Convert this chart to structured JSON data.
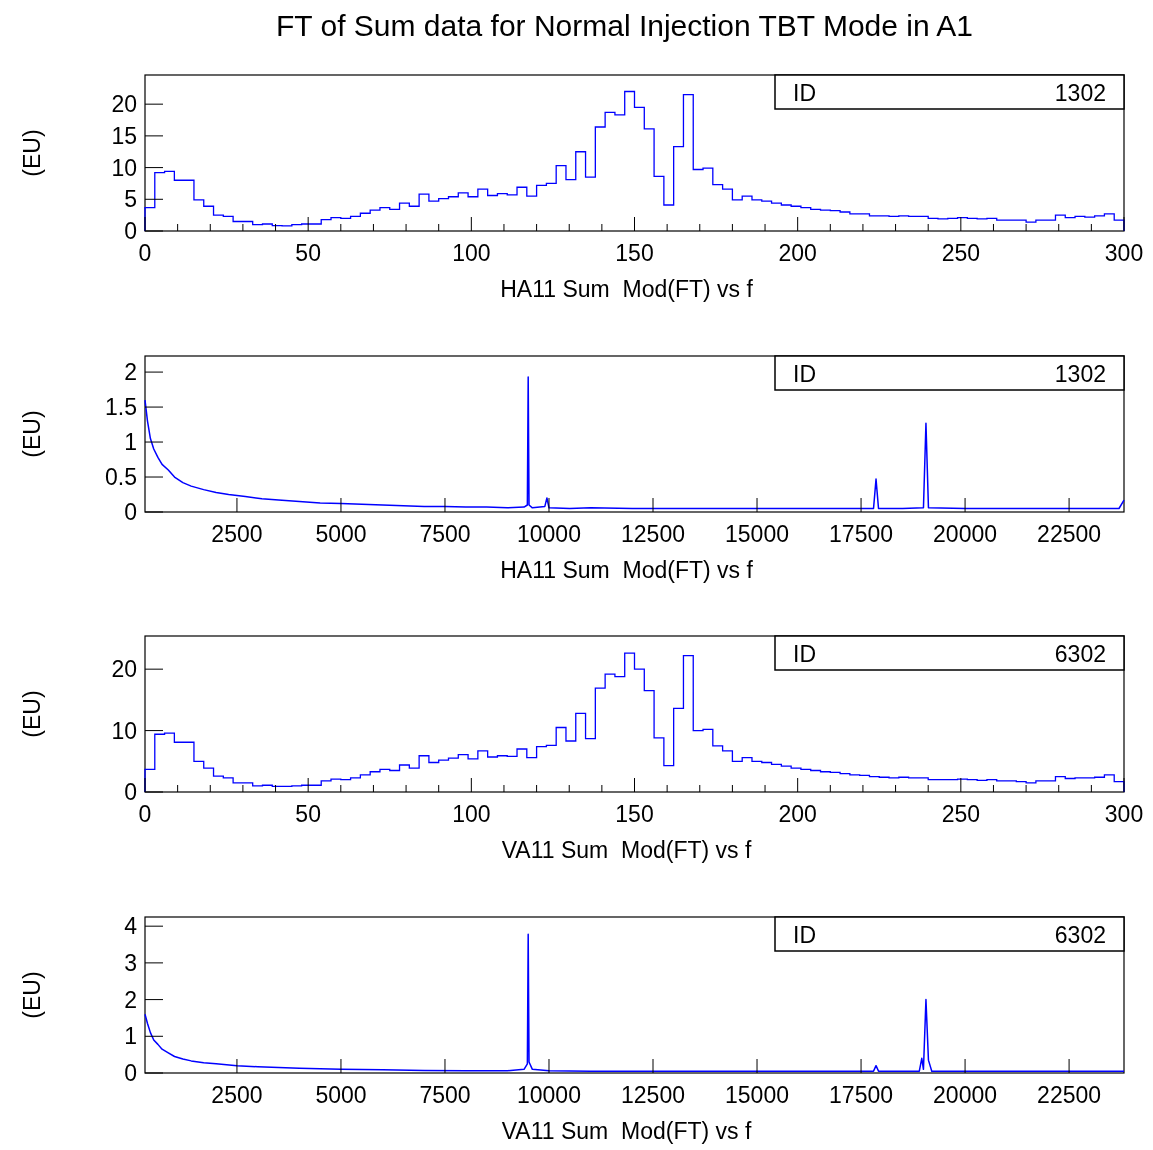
{
  "chart_data": [
    {
      "type": "histogram",
      "title": "FT of Sum data for Normal Injection TBT Mode in A1",
      "xlabel": "HA11 Sum  Mod(FT) vs f",
      "ylabel": "(EU)",
      "annotations": [
        "ID",
        "1302"
      ],
      "color": "#0000ff",
      "bins": [
        0,
        3,
        6,
        9,
        12,
        15,
        18,
        21,
        24,
        27,
        30,
        33,
        36,
        39,
        42,
        45,
        48,
        51,
        54,
        57,
        60,
        63,
        66,
        69,
        72,
        75,
        78,
        81,
        84,
        87,
        90,
        93,
        96,
        99,
        102,
        105,
        108,
        111,
        114,
        117,
        120,
        123,
        126,
        129,
        132,
        135,
        138,
        141,
        144,
        147,
        150,
        153,
        156,
        159,
        162,
        165,
        168,
        171,
        174,
        177,
        180,
        183,
        186,
        189,
        192,
        195,
        198,
        201,
        204,
        207,
        210,
        213,
        216,
        219,
        222,
        225,
        228,
        231,
        234,
        237,
        240,
        243,
        246,
        249,
        252,
        255,
        258,
        261,
        264,
        267,
        270,
        273,
        276,
        279,
        282,
        285,
        288,
        291,
        294,
        297,
        300
      ],
      "values": [
        3.7,
        9.2,
        9.4,
        8.0,
        8.0,
        4.9,
        3.9,
        2.5,
        2.3,
        1.5,
        1.5,
        1.0,
        1.1,
        0.85,
        0.8,
        1.0,
        1.1,
        1.1,
        1.8,
        2.1,
        2.0,
        2.3,
        2.8,
        3.3,
        3.7,
        3.4,
        4.4,
        3.9,
        5.8,
        4.7,
        5.1,
        5.4,
        6.0,
        5.4,
        6.6,
        5.6,
        5.9,
        5.7,
        6.9,
        5.5,
        7.2,
        7.5,
        10.3,
        8.1,
        12.5,
        8.5,
        16.4,
        18.7,
        18.3,
        22.0,
        19.5,
        16.1,
        8.6,
        4.1,
        13.3,
        21.5,
        9.7,
        9.9,
        7.3,
        6.6,
        4.9,
        5.5,
        4.9,
        4.7,
        4.4,
        4.1,
        3.9,
        3.7,
        3.4,
        3.3,
        3.2,
        3.0,
        2.7,
        2.7,
        2.4,
        2.4,
        2.3,
        2.4,
        2.3,
        2.3,
        2.0,
        1.9,
        2.0,
        2.1,
        2.0,
        1.9,
        2.0,
        1.7,
        1.7,
        1.7,
        1.4,
        1.7,
        1.7,
        2.5,
        2.1,
        2.3,
        2.2,
        2.4,
        2.7,
        1.7
      ],
      "xlim": [
        0,
        300
      ],
      "xticks": [
        0,
        {
          "value": 10,
          "label": null
        },
        {
          "value": 20,
          "label": null
        },
        {
          "value": 30,
          "label": null
        },
        {
          "value": 40,
          "label": null
        },
        50,
        {
          "value": 60,
          "label": null
        },
        {
          "value": 70,
          "label": null
        },
        {
          "value": 80,
          "label": null
        },
        {
          "value": 90,
          "label": null
        },
        100,
        {
          "value": 110,
          "label": null
        },
        {
          "value": 120,
          "label": null
        },
        {
          "value": 130,
          "label": null
        },
        {
          "value": 140,
          "label": null
        },
        150,
        {
          "value": 160,
          "label": null
        },
        {
          "value": 170,
          "label": null
        },
        {
          "value": 180,
          "label": null
        },
        {
          "value": 190,
          "label": null
        },
        200,
        {
          "value": 210,
          "label": null
        },
        {
          "value": 220,
          "label": null
        },
        {
          "value": 230,
          "label": null
        },
        {
          "value": 240,
          "label": null
        },
        250,
        {
          "value": 260,
          "label": null
        },
        {
          "value": 270,
          "label": null
        },
        {
          "value": 280,
          "label": null
        },
        {
          "value": 290,
          "label": null
        },
        300
      ],
      "ylim": [
        0,
        24.6
      ],
      "yticks": [
        0,
        5,
        10,
        15,
        20
      ]
    },
    {
      "type": "line",
      "xlabel": "HA11 Sum  Mod(FT) vs f",
      "ylabel": "(EU)",
      "annotations": [
        "ID",
        "1302"
      ],
      "color": "#0000ff",
      "marker": "none",
      "x": [
        290,
        350,
        420,
        500,
        600,
        700,
        850,
        1000,
        1200,
        1400,
        1700,
        2000,
        2300,
        2700,
        3100,
        3500,
        4000,
        4500,
        5000,
        5500,
        6000,
        6500,
        7000,
        7500,
        8000,
        8500,
        9000,
        9400,
        9480,
        9500,
        9520,
        9600,
        9900,
        9950,
        10000,
        10500,
        11000,
        12000,
        13000,
        14000,
        15000,
        16000,
        17000,
        17800,
        17860,
        17920,
        18500,
        19000,
        19060,
        19120,
        20000,
        21000,
        22000,
        23000,
        23700,
        23820
      ],
      "values": [
        1.6,
        1.3,
        1.05,
        0.9,
        0.78,
        0.68,
        0.6,
        0.5,
        0.42,
        0.37,
        0.32,
        0.28,
        0.25,
        0.22,
        0.19,
        0.17,
        0.15,
        0.13,
        0.12,
        0.11,
        0.1,
        0.09,
        0.08,
        0.08,
        0.07,
        0.07,
        0.06,
        0.07,
        0.1,
        1.93,
        0.1,
        0.06,
        0.08,
        0.2,
        0.06,
        0.05,
        0.06,
        0.05,
        0.05,
        0.05,
        0.05,
        0.05,
        0.05,
        0.05,
        0.47,
        0.05,
        0.05,
        0.06,
        1.27,
        0.06,
        0.05,
        0.05,
        0.05,
        0.05,
        0.05,
        0.17
      ],
      "xlim": [
        290,
        23820
      ],
      "xticks": [
        2500,
        5000,
        7500,
        10000,
        12500,
        15000,
        17500,
        20000,
        22500
      ],
      "ylim": [
        0,
        2.23
      ],
      "yticks": [
        0,
        0.5,
        1,
        1.5,
        2
      ]
    },
    {
      "type": "histogram",
      "xlabel": "VA11 Sum  Mod(FT) vs f",
      "ylabel": "(EU)",
      "annotations": [
        "ID",
        "6302"
      ],
      "color": "#0000ff",
      "bins": [
        0,
        3,
        6,
        9,
        12,
        15,
        18,
        21,
        24,
        27,
        30,
        33,
        36,
        39,
        42,
        45,
        48,
        51,
        54,
        57,
        60,
        63,
        66,
        69,
        72,
        75,
        78,
        81,
        84,
        87,
        90,
        93,
        96,
        99,
        102,
        105,
        108,
        111,
        114,
        117,
        120,
        123,
        126,
        129,
        132,
        135,
        138,
        141,
        144,
        147,
        150,
        153,
        156,
        159,
        162,
        165,
        168,
        171,
        174,
        177,
        180,
        183,
        186,
        189,
        192,
        195,
        198,
        201,
        204,
        207,
        210,
        213,
        216,
        219,
        222,
        225,
        228,
        231,
        234,
        237,
        240,
        243,
        246,
        249,
        252,
        255,
        258,
        261,
        264,
        267,
        270,
        273,
        276,
        279,
        282,
        285,
        288,
        291,
        294,
        297,
        300
      ],
      "values": [
        3.7,
        9.4,
        9.6,
        8.1,
        8.1,
        5.0,
        3.9,
        2.6,
        2.3,
        1.5,
        1.5,
        1.0,
        1.1,
        0.9,
        0.9,
        1.0,
        1.1,
        1.1,
        1.8,
        2.1,
        2.0,
        2.3,
        2.8,
        3.3,
        3.7,
        3.5,
        4.4,
        3.9,
        5.9,
        4.8,
        5.2,
        5.5,
        6.1,
        5.4,
        6.7,
        5.7,
        5.9,
        5.8,
        7.0,
        5.6,
        7.4,
        7.6,
        10.5,
        8.3,
        12.8,
        8.7,
        16.9,
        19.2,
        18.8,
        22.6,
        20.0,
        16.5,
        8.8,
        4.3,
        13.6,
        22.2,
        10.0,
        10.2,
        7.5,
        6.7,
        5.0,
        5.6,
        5.0,
        4.8,
        4.5,
        4.2,
        3.9,
        3.7,
        3.5,
        3.3,
        3.2,
        3.0,
        2.8,
        2.7,
        2.5,
        2.4,
        2.3,
        2.4,
        2.3,
        2.3,
        2.0,
        2.0,
        2.0,
        2.1,
        2.0,
        1.9,
        2.0,
        1.8,
        1.8,
        1.7,
        1.5,
        1.8,
        1.8,
        2.5,
        2.2,
        2.3,
        2.3,
        2.4,
        2.8,
        1.7
      ],
      "xlim": [
        0,
        300
      ],
      "xticks": [
        0,
        {
          "value": 10,
          "label": null
        },
        {
          "value": 20,
          "label": null
        },
        {
          "value": 30,
          "label": null
        },
        {
          "value": 40,
          "label": null
        },
        50,
        {
          "value": 60,
          "label": null
        },
        {
          "value": 70,
          "label": null
        },
        {
          "value": 80,
          "label": null
        },
        {
          "value": 90,
          "label": null
        },
        100,
        {
          "value": 110,
          "label": null
        },
        {
          "value": 120,
          "label": null
        },
        {
          "value": 130,
          "label": null
        },
        {
          "value": 140,
          "label": null
        },
        150,
        {
          "value": 160,
          "label": null
        },
        {
          "value": 170,
          "label": null
        },
        {
          "value": 180,
          "label": null
        },
        {
          "value": 190,
          "label": null
        },
        200,
        {
          "value": 210,
          "label": null
        },
        {
          "value": 220,
          "label": null
        },
        {
          "value": 230,
          "label": null
        },
        {
          "value": 240,
          "label": null
        },
        250,
        {
          "value": 260,
          "label": null
        },
        {
          "value": 270,
          "label": null
        },
        {
          "value": 280,
          "label": null
        },
        {
          "value": 290,
          "label": null
        },
        300
      ],
      "ylim": [
        0,
        25.4
      ],
      "yticks": [
        0,
        10,
        20
      ]
    },
    {
      "type": "line",
      "xlabel": "VA11 Sum  Mod(FT) vs f",
      "ylabel": "(EU)",
      "annotations": [
        "ID",
        "6302"
      ],
      "color": "#0000ff",
      "marker": "none",
      "x": [
        290,
        350,
        420,
        500,
        600,
        700,
        850,
        1000,
        1200,
        1400,
        1700,
        2000,
        2500,
        3000,
        3500,
        4000,
        5000,
        6000,
        7000,
        8000,
        9000,
        9400,
        9480,
        9500,
        9520,
        9600,
        10000,
        11000,
        12000,
        14000,
        16000,
        17800,
        17860,
        17920,
        18900,
        18960,
        19000,
        19060,
        19120,
        19200,
        20000,
        22000,
        23820
      ],
      "values": [
        1.6,
        1.35,
        1.1,
        0.9,
        0.78,
        0.65,
        0.55,
        0.45,
        0.38,
        0.33,
        0.28,
        0.25,
        0.2,
        0.17,
        0.15,
        0.13,
        0.1,
        0.09,
        0.07,
        0.06,
        0.06,
        0.1,
        0.25,
        3.78,
        0.3,
        0.1,
        0.06,
        0.05,
        0.05,
        0.05,
        0.05,
        0.05,
        0.2,
        0.05,
        0.05,
        0.4,
        0.1,
        2.0,
        0.35,
        0.05,
        0.05,
        0.05,
        0.05
      ],
      "xlim": [
        290,
        23820
      ],
      "xticks": [
        2500,
        5000,
        7500,
        10000,
        12500,
        15000,
        17500,
        20000,
        22500
      ],
      "ylim": [
        0,
        4.25
      ],
      "yticks": [
        0,
        1,
        2,
        3,
        4
      ]
    }
  ]
}
